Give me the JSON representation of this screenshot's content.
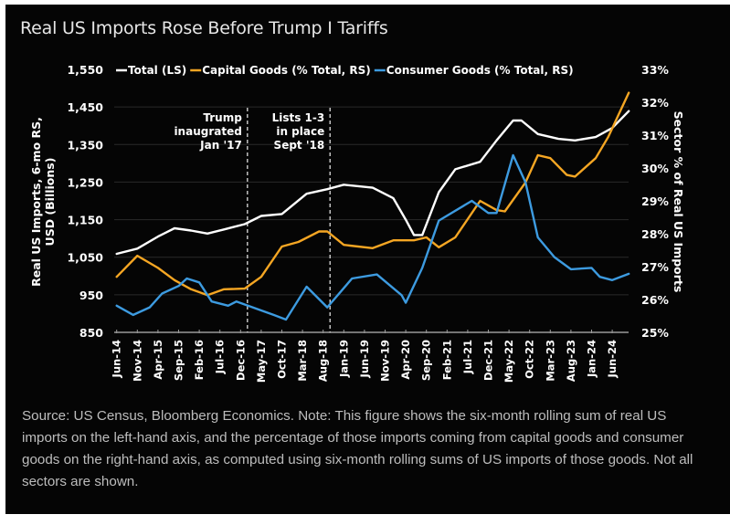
{
  "chart_data": {
    "type": "line",
    "title": "Real US Imports Rose Before Trump I Tariffs",
    "ylabel": "Real US Imports, 6-mo RS, USD (Billions)",
    "y2label": "Sector % of Real US Imports",
    "xlabel": "",
    "ylim": [
      850,
      1550
    ],
    "y2lim": [
      25,
      33
    ],
    "yticks": [
      "1,550",
      "1,450",
      "1,350",
      "1,250",
      "1,150",
      "1,050",
      "950",
      "850"
    ],
    "ytick_values": [
      1550,
      1450,
      1350,
      1250,
      1150,
      1050,
      950,
      850
    ],
    "y2ticks": [
      "33%",
      "32%",
      "31%",
      "30%",
      "29%",
      "28%",
      "27%",
      "26%",
      "25%"
    ],
    "y2tick_values": [
      33,
      32,
      31,
      30,
      29,
      28,
      27,
      26,
      25
    ],
    "xlim": [
      "2014-06",
      "2024-10"
    ],
    "xticks": [
      "Jun-14",
      "Nov-14",
      "Apr-15",
      "Sep-15",
      "Feb-16",
      "Jul-16",
      "Dec-16",
      "May-17",
      "Oct-17",
      "Mar-18",
      "Aug-18",
      "Jan-19",
      "Jun-19",
      "Nov-19",
      "Apr-20",
      "Sep-20",
      "Feb-21",
      "Jul-21",
      "Dec-21",
      "May-22",
      "Oct-22",
      "Mar-23",
      "Aug-23",
      "Jan-24",
      "Jun-24"
    ],
    "grid": true,
    "legend_position": "top",
    "series": [
      {
        "name": "Total (LS)",
        "axis": "left",
        "color": "#ffffff",
        "points": [
          [
            "2014-06",
            1059
          ],
          [
            "2014-11",
            1073
          ],
          [
            "2015-04",
            1105
          ],
          [
            "2015-08",
            1127
          ],
          [
            "2015-12",
            1121
          ],
          [
            "2016-04",
            1113
          ],
          [
            "2016-08",
            1124
          ],
          [
            "2017-01",
            1138
          ],
          [
            "2017-05",
            1160
          ],
          [
            "2017-10",
            1165
          ],
          [
            "2018-04",
            1219
          ],
          [
            "2018-09",
            1231
          ],
          [
            "2019-01",
            1243
          ],
          [
            "2019-08",
            1235
          ],
          [
            "2020-01",
            1207
          ],
          [
            "2020-04",
            1150
          ],
          [
            "2020-06",
            1109
          ],
          [
            "2020-08",
            1109
          ],
          [
            "2020-12",
            1223
          ],
          [
            "2021-04",
            1284
          ],
          [
            "2021-10",
            1304
          ],
          [
            "2022-02",
            1361
          ],
          [
            "2022-06",
            1414
          ],
          [
            "2022-08",
            1414
          ],
          [
            "2022-12",
            1378
          ],
          [
            "2023-05",
            1365
          ],
          [
            "2023-09",
            1361
          ],
          [
            "2024-02",
            1370
          ],
          [
            "2024-06",
            1394
          ],
          [
            "2024-10",
            1439
          ]
        ]
      },
      {
        "name": "Capital Goods (% Total, RS)",
        "axis": "right",
        "color": "#f5a623",
        "points": [
          [
            "2014-06",
            26.69
          ],
          [
            "2014-11",
            27.33
          ],
          [
            "2015-04",
            26.96
          ],
          [
            "2015-08",
            26.59
          ],
          [
            "2015-12",
            26.31
          ],
          [
            "2016-04",
            26.13
          ],
          [
            "2016-08",
            26.31
          ],
          [
            "2017-01",
            26.33
          ],
          [
            "2017-05",
            26.69
          ],
          [
            "2017-10",
            27.61
          ],
          [
            "2018-02",
            27.75
          ],
          [
            "2018-07",
            28.07
          ],
          [
            "2018-09",
            28.07
          ],
          [
            "2019-01",
            27.66
          ],
          [
            "2019-08",
            27.56
          ],
          [
            "2020-01",
            27.8
          ],
          [
            "2020-06",
            27.8
          ],
          [
            "2020-09",
            27.89
          ],
          [
            "2020-12",
            27.59
          ],
          [
            "2021-04",
            27.89
          ],
          [
            "2021-10",
            29.0
          ],
          [
            "2022-02",
            28.72
          ],
          [
            "2022-04",
            28.68
          ],
          [
            "2022-09",
            29.56
          ],
          [
            "2022-12",
            30.39
          ],
          [
            "2023-03",
            30.3
          ],
          [
            "2023-07",
            29.79
          ],
          [
            "2023-09",
            29.74
          ],
          [
            "2024-02",
            30.3
          ],
          [
            "2024-05",
            30.94
          ],
          [
            "2024-10",
            32.29
          ]
        ]
      },
      {
        "name": "Consumer Goods (% Total, RS)",
        "axis": "right",
        "color": "#3d9be0",
        "points": [
          [
            "2014-06",
            25.81
          ],
          [
            "2014-10",
            25.53
          ],
          [
            "2015-02",
            25.76
          ],
          [
            "2015-05",
            26.18
          ],
          [
            "2015-09",
            26.41
          ],
          [
            "2015-11",
            26.64
          ],
          [
            "2016-02",
            26.52
          ],
          [
            "2016-05",
            25.94
          ],
          [
            "2016-09",
            25.81
          ],
          [
            "2016-11",
            25.94
          ],
          [
            "2017-04",
            25.71
          ],
          [
            "2017-08",
            25.53
          ],
          [
            "2017-11",
            25.39
          ],
          [
            "2018-04",
            26.39
          ],
          [
            "2018-09",
            25.76
          ],
          [
            "2019-03",
            26.64
          ],
          [
            "2019-09",
            26.76
          ],
          [
            "2020-03",
            26.13
          ],
          [
            "2020-04",
            25.9
          ],
          [
            "2020-08",
            26.96
          ],
          [
            "2020-12",
            28.4
          ],
          [
            "2021-08",
            29.0
          ],
          [
            "2021-12",
            28.63
          ],
          [
            "2022-02",
            28.63
          ],
          [
            "2022-06",
            30.39
          ],
          [
            "2022-09",
            29.56
          ],
          [
            "2022-12",
            27.89
          ],
          [
            "2023-04",
            27.29
          ],
          [
            "2023-08",
            26.92
          ],
          [
            "2024-01",
            26.96
          ],
          [
            "2024-03",
            26.69
          ],
          [
            "2024-06",
            26.59
          ],
          [
            "2024-10",
            26.78
          ]
        ]
      }
    ],
    "annotations": [
      {
        "date": "2017-01",
        "lines": [
          "Trump",
          "inaugrated",
          "Jan '17"
        ],
        "style": "dashed-vertical",
        "label_side": "left"
      },
      {
        "date": "2018-09",
        "lines": [
          "Lists 1-3",
          "in place",
          "Sept '18"
        ],
        "style": "dashed-vertical",
        "label_side": "left"
      }
    ]
  },
  "note": "Source: US Census, Bloomberg Economics. Note: This figure shows the six-month rolling sum of real US imports on the left-hand axis, and the percentage of those imports coming from capital goods and consumer goods on the right-hand axis, as computed using six-month rolling sums of US imports of those goods. Not all sectors are shown."
}
